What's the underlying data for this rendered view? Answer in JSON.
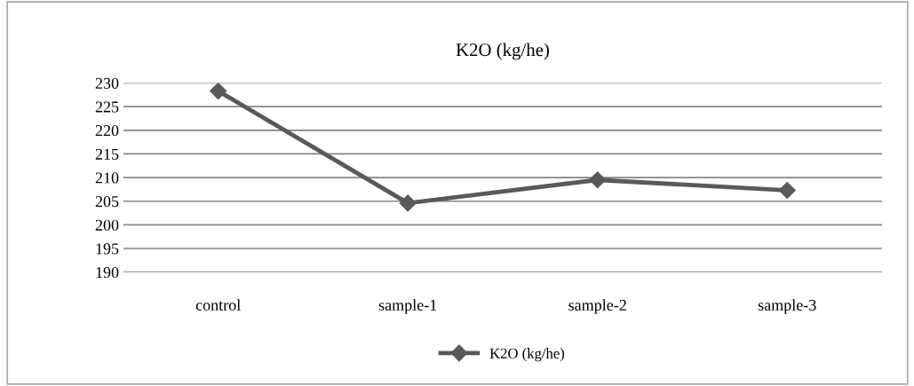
{
  "chart_data": {
    "type": "line",
    "title": "K2O (kg/he)",
    "categories": [
      "control",
      "sample-1",
      "sample-2",
      "sample-3"
    ],
    "series": [
      {
        "name": "K2O (kg/he)",
        "color": "#595959",
        "values": [
          228.3,
          204.6,
          209.5,
          207.3
        ]
      }
    ],
    "ylim": [
      190,
      230
    ],
    "yticks": [
      190,
      195,
      200,
      205,
      210,
      215,
      220,
      225,
      230
    ],
    "grid": "y",
    "legend": "bottom",
    "marker": "diamond",
    "line_style": "solid"
  }
}
